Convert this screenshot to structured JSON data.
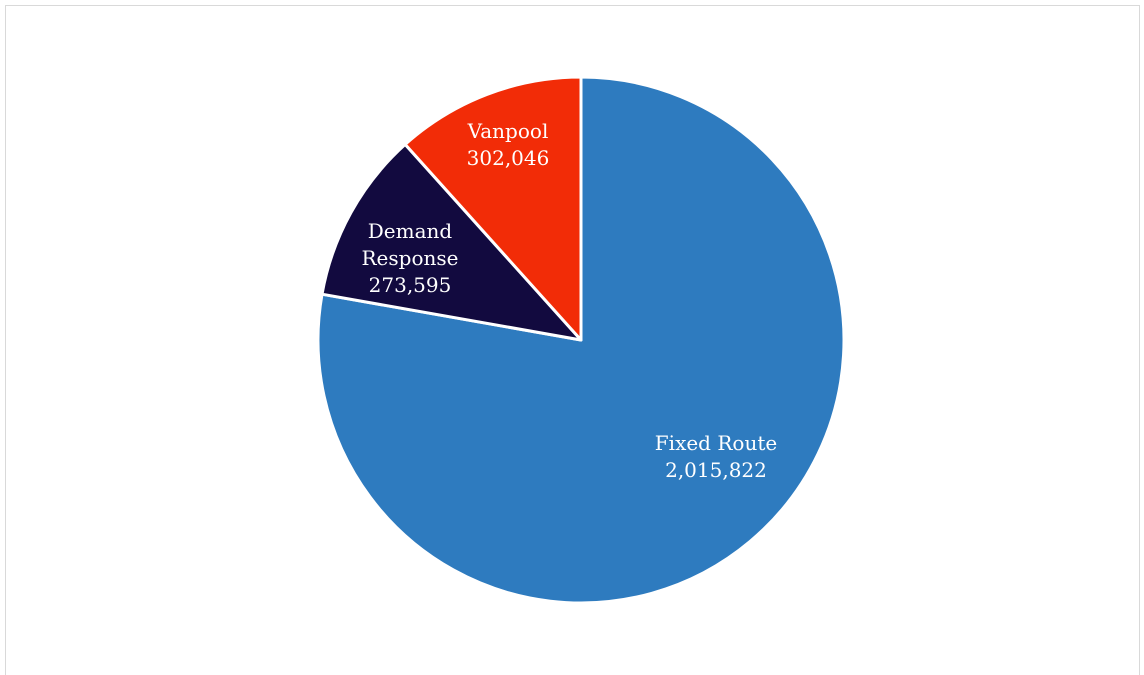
{
  "chart_data": {
    "type": "pie",
    "categories": [
      "Fixed Route",
      "Demand Response",
      "Vanpool"
    ],
    "values": [
      2015822,
      273595,
      302046
    ],
    "value_labels": [
      "2,015,822",
      "273,595",
      "302,046"
    ],
    "colors": [
      "#2e7bbf",
      "#120a3f",
      "#f22c07"
    ]
  }
}
